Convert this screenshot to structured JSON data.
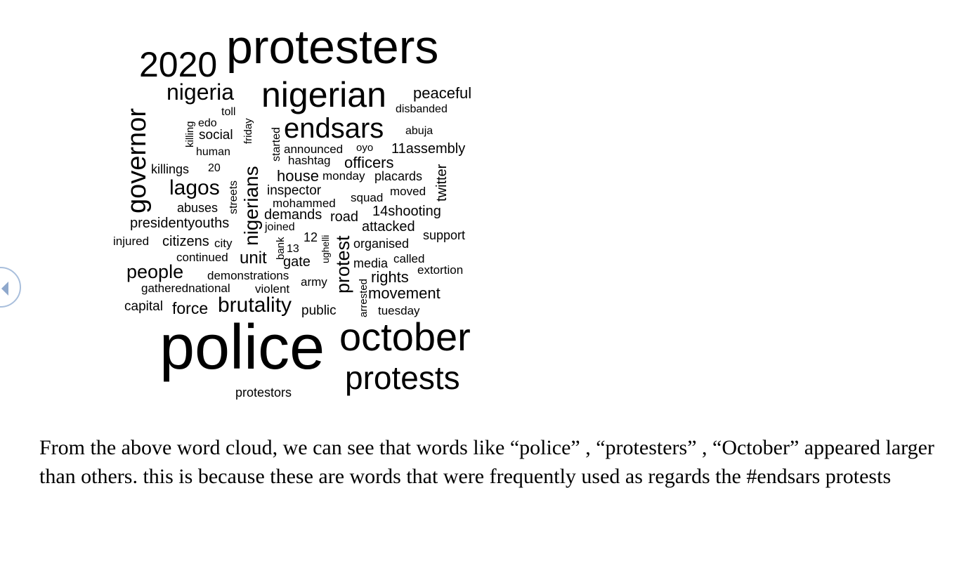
{
  "word_cloud": {
    "words": [
      {
        "text": "protesters",
        "weight": "xl"
      },
      {
        "text": "2020",
        "weight": "l"
      },
      {
        "text": "nigeria",
        "weight": "m"
      },
      {
        "text": "nigerian",
        "weight": "l"
      },
      {
        "text": "peaceful",
        "weight": "s"
      },
      {
        "text": "toll",
        "weight": "xs"
      },
      {
        "text": "disbanded",
        "weight": "xs"
      },
      {
        "text": "killing",
        "weight": "xs"
      },
      {
        "text": "edo",
        "weight": "xs"
      },
      {
        "text": "friday",
        "weight": "xs"
      },
      {
        "text": "social",
        "weight": "s"
      },
      {
        "text": "endsars",
        "weight": "l"
      },
      {
        "text": "abuja",
        "weight": "xs"
      },
      {
        "text": "governor",
        "weight": "m"
      },
      {
        "text": "started",
        "weight": "xs"
      },
      {
        "text": "human",
        "weight": "xs"
      },
      {
        "text": "announced",
        "weight": "xs"
      },
      {
        "text": "oyo",
        "weight": "xs"
      },
      {
        "text": "11assembly",
        "weight": "s"
      },
      {
        "text": "hashtag",
        "weight": "xs"
      },
      {
        "text": "officers",
        "weight": "s"
      },
      {
        "text": "killings",
        "weight": "xs"
      },
      {
        "text": "20",
        "weight": "xs"
      },
      {
        "text": "twitter",
        "weight": "xs"
      },
      {
        "text": "nigerians",
        "weight": "m"
      },
      {
        "text": "house",
        "weight": "s"
      },
      {
        "text": "monday",
        "weight": "xs"
      },
      {
        "text": "placards",
        "weight": "xs"
      },
      {
        "text": "lagos",
        "weight": "m"
      },
      {
        "text": "streets",
        "weight": "xs"
      },
      {
        "text": "inspector",
        "weight": "xs"
      },
      {
        "text": "moved",
        "weight": "xs"
      },
      {
        "text": "squad",
        "weight": "xs"
      },
      {
        "text": "mohammed",
        "weight": "xs"
      },
      {
        "text": "abuses",
        "weight": "xs"
      },
      {
        "text": "14shooting",
        "weight": "s"
      },
      {
        "text": "demands",
        "weight": "s"
      },
      {
        "text": "road",
        "weight": "s"
      },
      {
        "text": "presidentyouths",
        "weight": "s"
      },
      {
        "text": "joined",
        "weight": "xs"
      },
      {
        "text": "attacked",
        "weight": "s"
      },
      {
        "text": "support",
        "weight": "xs"
      },
      {
        "text": "12",
        "weight": "xs"
      },
      {
        "text": "ughelli",
        "weight": "xs"
      },
      {
        "text": "injured",
        "weight": "xs"
      },
      {
        "text": "citizens",
        "weight": "s"
      },
      {
        "text": "city",
        "weight": "xs"
      },
      {
        "text": "bank",
        "weight": "xs"
      },
      {
        "text": "13",
        "weight": "xs"
      },
      {
        "text": "organised",
        "weight": "xs"
      },
      {
        "text": "protest",
        "weight": "m"
      },
      {
        "text": "continued",
        "weight": "xs"
      },
      {
        "text": "unit",
        "weight": "s"
      },
      {
        "text": "gate",
        "weight": "s"
      },
      {
        "text": "called",
        "weight": "xs"
      },
      {
        "text": "media",
        "weight": "xs"
      },
      {
        "text": "people",
        "weight": "m"
      },
      {
        "text": "extortion",
        "weight": "xs"
      },
      {
        "text": "demonstrations",
        "weight": "xs"
      },
      {
        "text": "army",
        "weight": "xs"
      },
      {
        "text": "rights",
        "weight": "s"
      },
      {
        "text": "arrested",
        "weight": "xs"
      },
      {
        "text": "gatherednational",
        "weight": "xs"
      },
      {
        "text": "violent",
        "weight": "xs"
      },
      {
        "text": "movement",
        "weight": "s"
      },
      {
        "text": "capital",
        "weight": "xs"
      },
      {
        "text": "force",
        "weight": "s"
      },
      {
        "text": "brutality",
        "weight": "m"
      },
      {
        "text": "public",
        "weight": "xs"
      },
      {
        "text": "tuesday",
        "weight": "xs"
      },
      {
        "text": "police",
        "weight": "xxl"
      },
      {
        "text": "october",
        "weight": "xl"
      },
      {
        "text": "protests",
        "weight": "l"
      },
      {
        "text": "protestors",
        "weight": "xs"
      }
    ]
  },
  "caption": {
    "text": "From the above word cloud, we can see that words like “police” , “protesters” , “October” appeared larger than others. this is because these are words that were frequently used as regards the #endsars protests"
  },
  "navigation": {
    "prev_icon": "chevron-left-icon",
    "colors": {
      "ring": "#a9bfdc",
      "arrow": "#8fa8cc"
    }
  }
}
